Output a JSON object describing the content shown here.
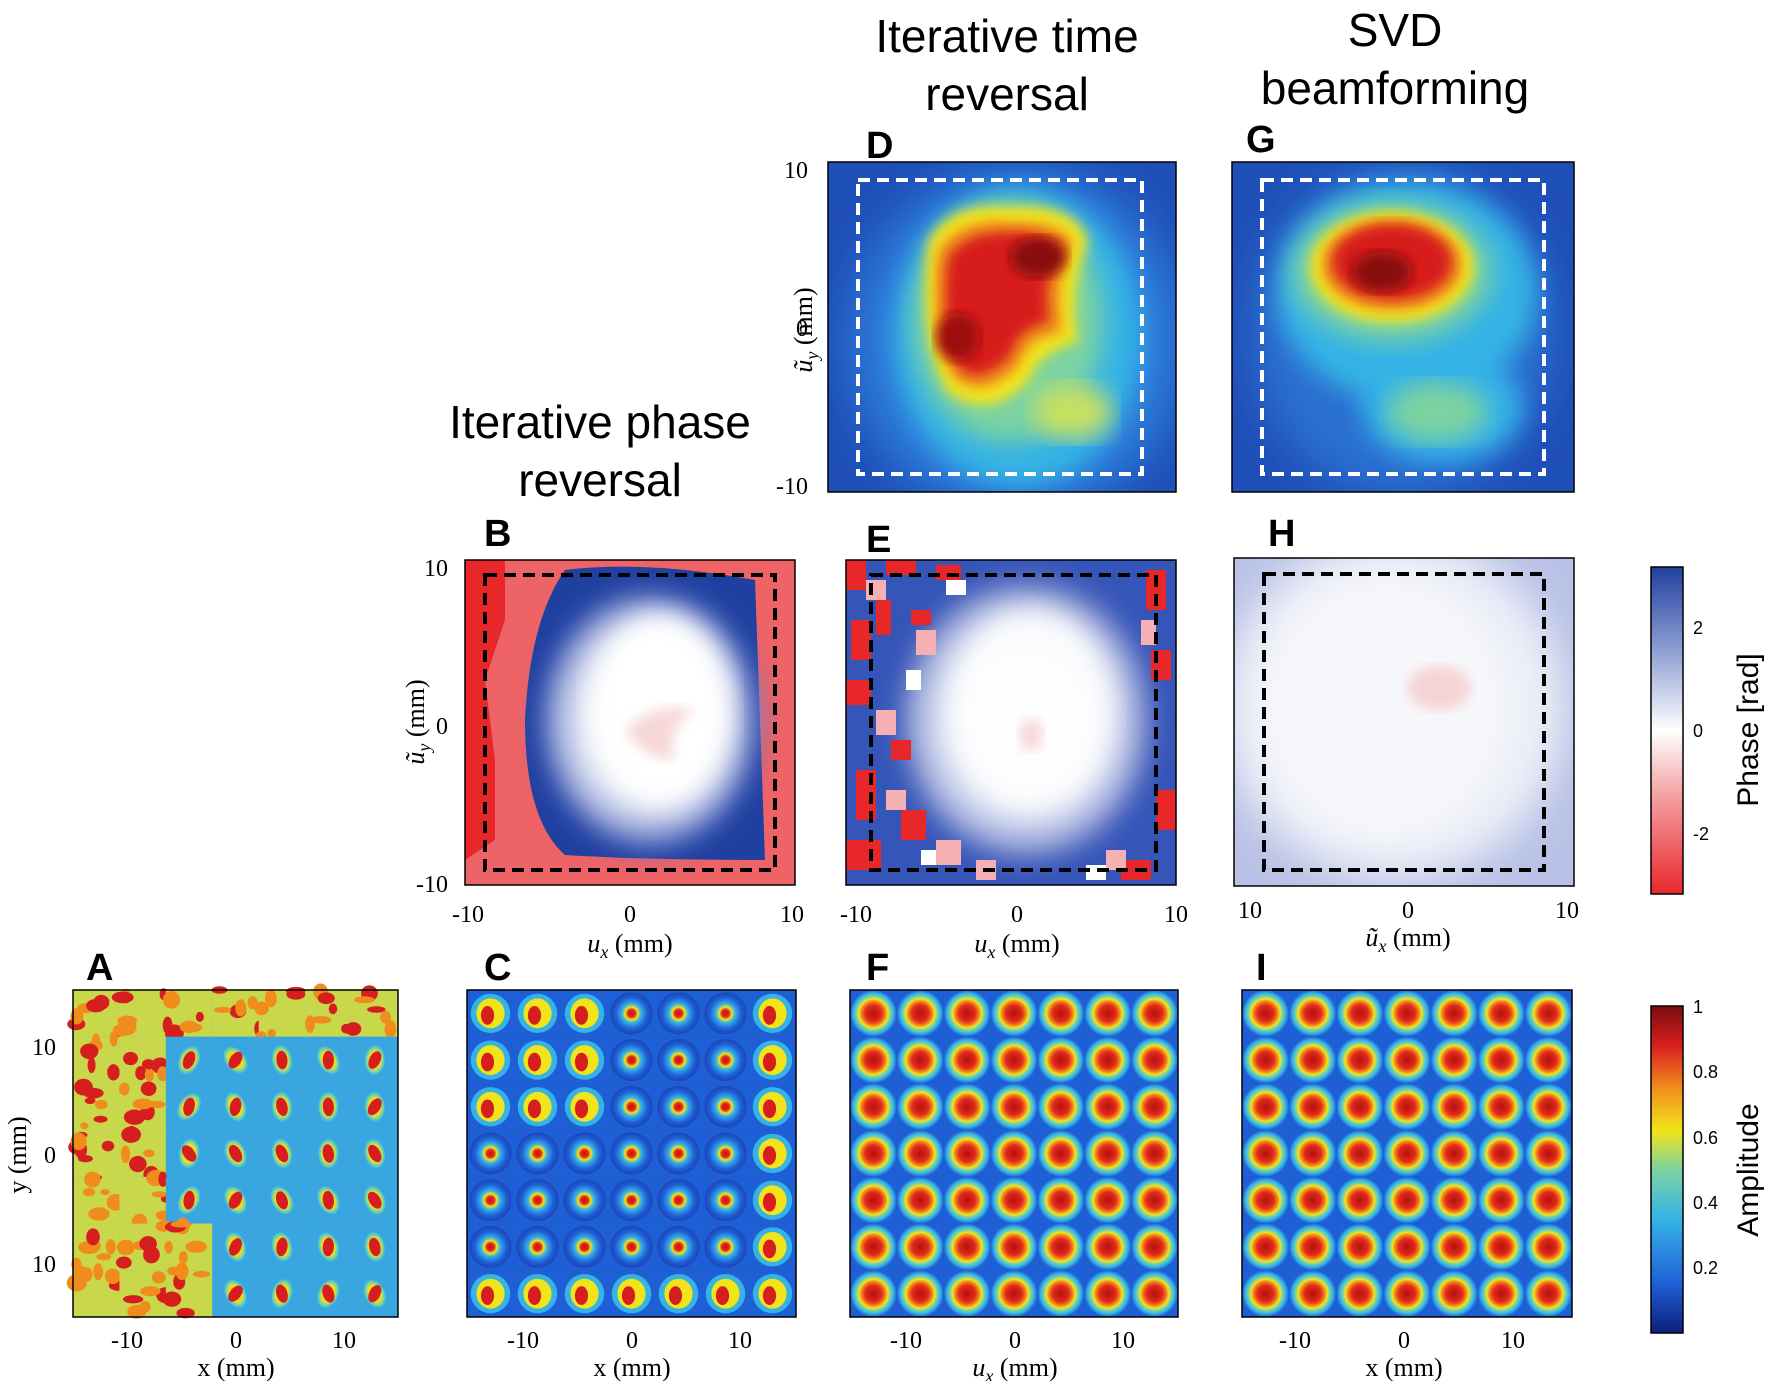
{
  "column_titles": {
    "iterative_phase_reversal": [
      "Iterative phase",
      "reversal"
    ],
    "iterative_time_reversal": [
      "Iterative time",
      "reversal"
    ],
    "svd_beamforming": [
      "SVD",
      "beamforming"
    ]
  },
  "panels": {
    "A": {
      "label": "A",
      "kind": "grid",
      "xlabel": "x (mm)",
      "ylabel": "y (mm)",
      "xticks": [
        "-10",
        "0",
        "10"
      ],
      "yticks": [
        "10",
        "0",
        "10"
      ]
    },
    "B": {
      "label": "B",
      "kind": "phase",
      "xlabel": "u",
      "xlabel_sub": "x",
      "xlabel_unit": " (mm)",
      "ylabel": "ũ",
      "ylabel_sub": "y",
      "ylabel_unit": " (mm)",
      "xticks": [
        "-10",
        "0",
        "10"
      ],
      "yticks": [
        "10",
        "0",
        "-10"
      ]
    },
    "C": {
      "label": "C",
      "kind": "grid",
      "xlabel": "x (mm)",
      "xticks": [
        "-10",
        "0",
        "10"
      ]
    },
    "D": {
      "label": "D",
      "kind": "amplitude",
      "ylabel": "ũ",
      "ylabel_sub": "y",
      "ylabel_unit": " (mm)",
      "yticks": [
        "10",
        "0",
        "-10"
      ]
    },
    "E": {
      "label": "E",
      "kind": "phase",
      "xlabel": "u",
      "xlabel_sub": "x",
      "xlabel_unit": " (mm)",
      "xticks": [
        "-10",
        "0",
        "10"
      ]
    },
    "F": {
      "label": "F",
      "kind": "grid",
      "xlabel": "u",
      "xlabel_sub": "x",
      "xlabel_unit": " (mm)",
      "xticks": [
        "-10",
        "0",
        "10"
      ]
    },
    "G": {
      "label": "G",
      "kind": "amplitude"
    },
    "H": {
      "label": "H",
      "kind": "phase",
      "xlabel": "ũ",
      "xlabel_sub": "x",
      "xlabel_unit": " (mm)",
      "xticks": [
        "10",
        "0",
        "10"
      ]
    },
    "I": {
      "label": "I",
      "kind": "grid",
      "xlabel": "x (mm)",
      "xticks": [
        "-10",
        "0",
        "10"
      ]
    }
  },
  "colorbars": {
    "phase": {
      "label": "Phase [rad]",
      "ticks": [
        "2",
        "0",
        "-2"
      ],
      "range": [
        -3.14,
        3.14
      ],
      "colors": [
        "#e8272b",
        "#ffffff",
        "#2040a0"
      ]
    },
    "amplitude": {
      "label": "Amplitude",
      "ticks": [
        "1",
        "0.8",
        "0.6",
        "0.4",
        "0.2"
      ],
      "range": [
        0,
        1
      ],
      "colors": [
        "#0d1f7a",
        "#1f5fd6",
        "#36b3e6",
        "#7dd3a0",
        "#f2e41a",
        "#f08c1c",
        "#d71e1e",
        "#7a0c0c"
      ]
    }
  },
  "colors": {
    "jet_dark_blue": "#0d1f7a",
    "jet_blue": "#1f5fd6",
    "jet_cyan": "#36b3e6",
    "jet_yellow": "#f2e41a",
    "jet_red": "#d71e1e",
    "phase_red": "#e8272b",
    "phase_blue": "#2040a0",
    "dashed_white": "#ffffff",
    "dashed_black": "#000000"
  }
}
